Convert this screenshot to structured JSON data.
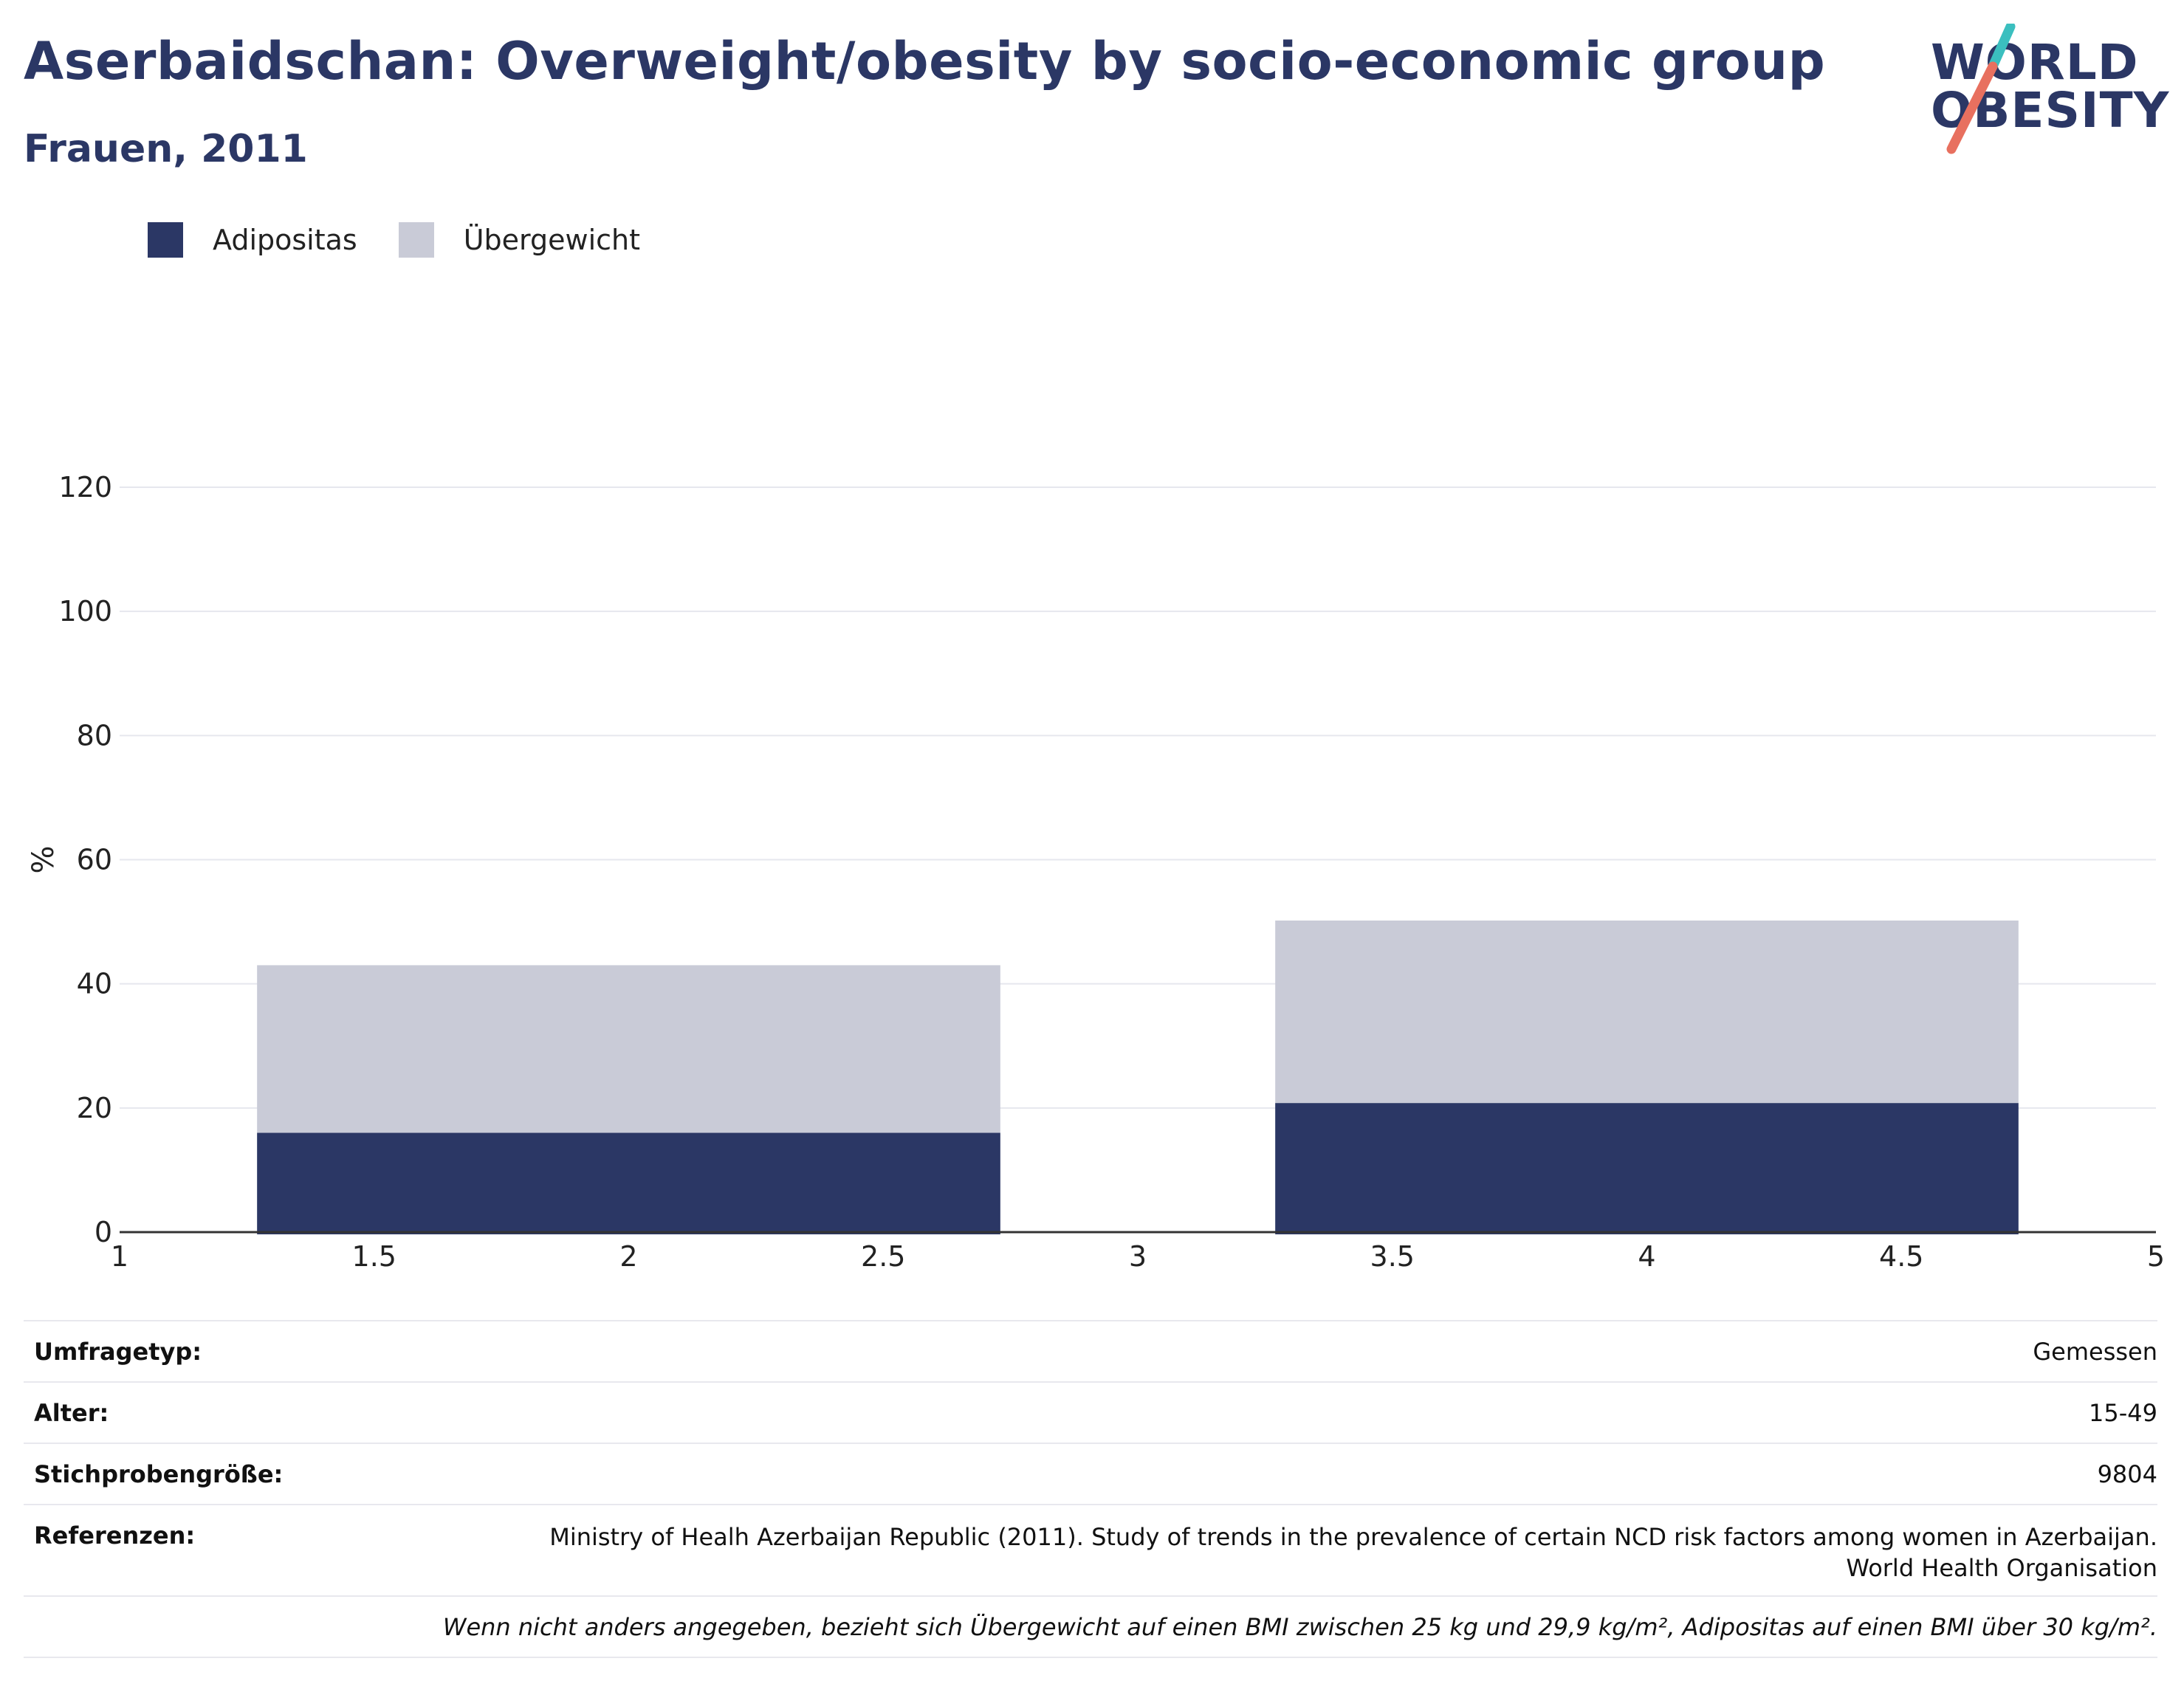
{
  "header": {
    "title": "Aserbaidschan: Overweight/obesity by socio-economic group",
    "subtitle": "Frauen, 2011"
  },
  "logo": {
    "line1": "WORLD",
    "line2": "OBESITY",
    "accent_teal": "#3bbfbf",
    "accent_coral": "#e8705f"
  },
  "legend": [
    {
      "label": "Adipositas",
      "color": "#2b3765"
    },
    {
      "label": "Übergewicht",
      "color": "#c9cbd7"
    }
  ],
  "chart_data": {
    "type": "bar",
    "stacked": true,
    "ylabel": "%",
    "xlabel": "",
    "ylim": [
      0,
      120
    ],
    "yticks": [
      0,
      20,
      40,
      60,
      80,
      100,
      120
    ],
    "xlim": [
      1,
      5
    ],
    "xticks": [
      "1",
      "1.5",
      "2",
      "2.5",
      "3",
      "3.5",
      "4",
      "4.5",
      "5"
    ],
    "grid": true,
    "bars": [
      {
        "x_start": 1.27,
        "x_end": 2.73,
        "values": [
          16.0,
          27.0
        ]
      },
      {
        "x_start": 3.27,
        "x_end": 4.73,
        "values": [
          20.8,
          29.4
        ]
      }
    ],
    "series": [
      {
        "name": "Adipositas",
        "color": "#2b3765",
        "values": [
          16.0,
          20.8
        ]
      },
      {
        "name": "Übergewicht",
        "color": "#c9cbd7",
        "values": [
          27.0,
          29.4
        ]
      }
    ]
  },
  "info": {
    "survey_type_label": "Umfragetyp:",
    "survey_type_value": "Gemessen",
    "age_label": "Alter:",
    "age_value": "15-49",
    "sample_label": "Stichprobengröße:",
    "sample_value": "9804",
    "references_label": "Referenzen:",
    "references_line1": "Ministry of Healh Azerbaijan Republic (2011). Study of trends in the prevalence of certain NCD risk factors among women in Azerbaijan.",
    "references_line2": "World Health Organisation",
    "footnote": "Wenn nicht anders angegeben, bezieht sich Übergewicht auf einen BMI zwischen 25 kg und 29,9 kg/m², Adipositas auf einen BMI über 30 kg/m²."
  }
}
